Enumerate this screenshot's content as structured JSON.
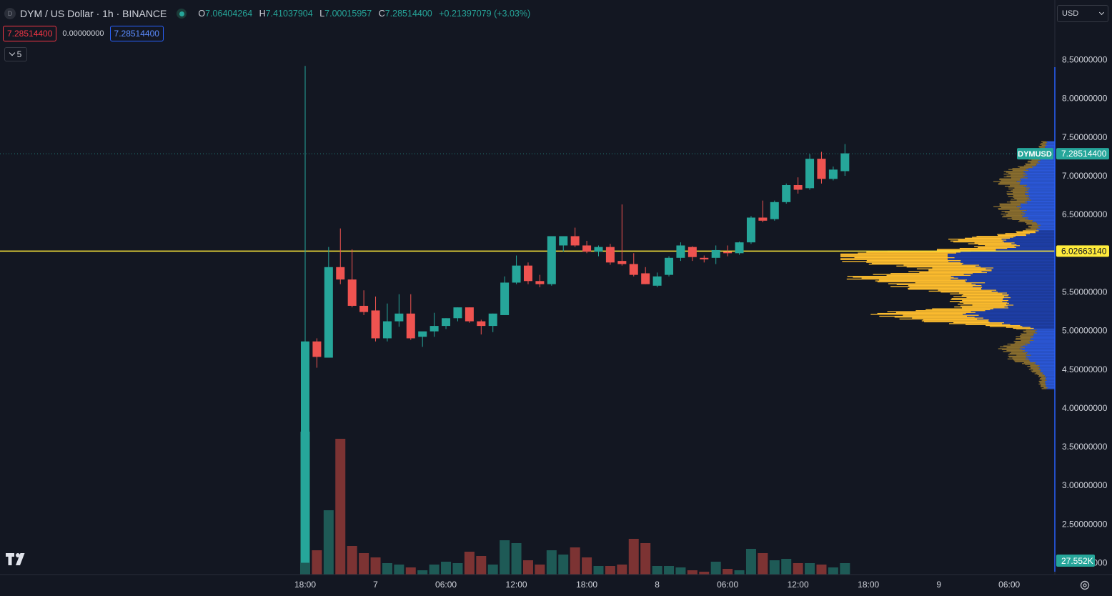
{
  "legend": {
    "badge": "D",
    "title": "DYM / US Dollar · 1h · BINANCE",
    "ohlc": [
      {
        "key": "O",
        "value": "7.06404264"
      },
      {
        "key": "H",
        "value": "7.41037904"
      },
      {
        "key": "L",
        "value": "7.00015957"
      },
      {
        "key": "C",
        "value": "7.28514400"
      }
    ],
    "change": "+0.21397079 (+3.03%)"
  },
  "trade": {
    "sell": "7.28514400",
    "spread": "0.00000000",
    "buy": "7.28514400"
  },
  "indicators_count": "5",
  "currency": "USD",
  "colors": {
    "up": "#26a69a",
    "down": "#ef5350",
    "vol_up": "#1e5a56",
    "vol_down": "#7c3333",
    "hline": "#ffeb3b",
    "profile_blue": "#1e3fa8",
    "profile_yellow": "#ffbe2e",
    "bg": "#131722",
    "axis_text": "#d1d4dc"
  },
  "chart_data": {
    "type": "candlestick",
    "symbol": "DYMUSD",
    "interval": "1h",
    "y_ticks": [
      "8.50000000",
      "8.00000000",
      "7.50000000",
      "7.00000000",
      "6.50000000",
      "5.50000000",
      "5.00000000",
      "4.50000000",
      "4.00000000",
      "3.50000000",
      "3.00000000",
      "2.50000000",
      "2.00000000"
    ],
    "y_tick_values": [
      8.5,
      8.0,
      7.5,
      7.0,
      6.5,
      5.5,
      5.0,
      4.5,
      4.0,
      3.5,
      3.0,
      2.5,
      2.0
    ],
    "x_ticks": [
      {
        "label": "18:00",
        "hour": 0
      },
      {
        "label": "7",
        "hour": 6
      },
      {
        "label": "06:00",
        "hour": 12
      },
      {
        "label": "12:00",
        "hour": 18
      },
      {
        "label": "18:00",
        "hour": 24
      },
      {
        "label": "8",
        "hour": 30
      },
      {
        "label": "06:00",
        "hour": 36
      },
      {
        "label": "12:00",
        "hour": 42
      },
      {
        "label": "18:00",
        "hour": 48
      },
      {
        "label": "9",
        "hour": 54
      },
      {
        "label": "06:00",
        "hour": 60
      }
    ],
    "last_price": {
      "label": "DYMUSD",
      "value": 7.285144,
      "text": "7.28514400"
    },
    "horizontal_line": {
      "value": 6.0266314,
      "text": "6.02663140"
    },
    "volume_label": "27.552K",
    "candles": [
      {
        "o": 2.0,
        "h": 8.42,
        "l": 2.0,
        "c": 4.86,
        "v": 1.0
      },
      {
        "o": 4.86,
        "h": 4.9,
        "l": 4.52,
        "c": 4.66,
        "v": 0.17
      },
      {
        "o": 4.65,
        "h": 6.08,
        "l": 4.65,
        "c": 5.82,
        "v": 0.45
      },
      {
        "o": 5.82,
        "h": 6.32,
        "l": 5.6,
        "c": 5.66,
        "v": 0.95
      },
      {
        "o": 5.66,
        "h": 6.05,
        "l": 5.3,
        "c": 5.32,
        "v": 0.2
      },
      {
        "o": 5.32,
        "h": 5.52,
        "l": 5.2,
        "c": 5.24,
        "v": 0.15
      },
      {
        "o": 5.26,
        "h": 5.44,
        "l": 4.86,
        "c": 4.9,
        "v": 0.12
      },
      {
        "o": 4.9,
        "h": 5.35,
        "l": 4.86,
        "c": 5.12,
        "v": 0.08
      },
      {
        "o": 5.12,
        "h": 5.47,
        "l": 5.05,
        "c": 5.22,
        "v": 0.07
      },
      {
        "o": 5.22,
        "h": 5.47,
        "l": 4.88,
        "c": 4.9,
        "v": 0.05
      },
      {
        "o": 4.92,
        "h": 4.98,
        "l": 4.79,
        "c": 4.99,
        "v": 0.03
      },
      {
        "o": 4.99,
        "h": 5.23,
        "l": 4.92,
        "c": 5.06,
        "v": 0.07
      },
      {
        "o": 5.06,
        "h": 5.16,
        "l": 5.02,
        "c": 5.16,
        "v": 0.09
      },
      {
        "o": 5.16,
        "h": 5.3,
        "l": 5.12,
        "c": 5.3,
        "v": 0.08
      },
      {
        "o": 5.3,
        "h": 5.3,
        "l": 5.1,
        "c": 5.12,
        "v": 0.16
      },
      {
        "o": 5.12,
        "h": 5.14,
        "l": 4.95,
        "c": 5.06,
        "v": 0.13
      },
      {
        "o": 5.06,
        "h": 5.22,
        "l": 4.98,
        "c": 5.22,
        "v": 0.07
      },
      {
        "o": 5.2,
        "h": 5.7,
        "l": 5.2,
        "c": 5.62,
        "v": 0.24
      },
      {
        "o": 5.62,
        "h": 5.97,
        "l": 5.6,
        "c": 5.84,
        "v": 0.22
      },
      {
        "o": 5.84,
        "h": 5.88,
        "l": 5.6,
        "c": 5.64,
        "v": 0.1
      },
      {
        "o": 5.64,
        "h": 5.72,
        "l": 5.56,
        "c": 5.6,
        "v": 0.07
      },
      {
        "o": 5.6,
        "h": 6.22,
        "l": 5.58,
        "c": 6.22,
        "v": 0.17
      },
      {
        "o": 6.1,
        "h": 6.22,
        "l": 6.02,
        "c": 6.22,
        "v": 0.14
      },
      {
        "o": 6.22,
        "h": 6.33,
        "l": 6.08,
        "c": 6.1,
        "v": 0.19
      },
      {
        "o": 6.1,
        "h": 6.16,
        "l": 6.0,
        "c": 6.02,
        "v": 0.12
      },
      {
        "o": 6.02,
        "h": 6.1,
        "l": 5.96,
        "c": 6.08,
        "v": 0.06
      },
      {
        "o": 6.08,
        "h": 6.12,
        "l": 5.85,
        "c": 5.88,
        "v": 0.06
      },
      {
        "o": 5.9,
        "h": 6.63,
        "l": 5.84,
        "c": 5.86,
        "v": 0.07
      },
      {
        "o": 5.86,
        "h": 6.0,
        "l": 5.7,
        "c": 5.72,
        "v": 0.25
      },
      {
        "o": 5.74,
        "h": 5.82,
        "l": 5.6,
        "c": 5.6,
        "v": 0.22
      },
      {
        "o": 5.58,
        "h": 5.75,
        "l": 5.56,
        "c": 5.7,
        "v": 0.06
      },
      {
        "o": 5.72,
        "h": 5.96,
        "l": 5.7,
        "c": 5.94,
        "v": 0.06
      },
      {
        "o": 5.94,
        "h": 6.14,
        "l": 5.9,
        "c": 6.1,
        "v": 0.05
      },
      {
        "o": 6.08,
        "h": 6.09,
        "l": 5.9,
        "c": 5.95,
        "v": 0.03
      },
      {
        "o": 5.94,
        "h": 5.97,
        "l": 5.88,
        "c": 5.92,
        "v": 0.02
      },
      {
        "o": 5.94,
        "h": 6.1,
        "l": 5.86,
        "c": 6.04,
        "v": 0.09
      },
      {
        "o": 6.02,
        "h": 6.1,
        "l": 5.96,
        "c": 6.0,
        "v": 0.04
      },
      {
        "o": 6.0,
        "h": 6.15,
        "l": 5.98,
        "c": 6.14,
        "v": 0.03
      },
      {
        "o": 6.14,
        "h": 6.48,
        "l": 6.12,
        "c": 6.46,
        "v": 0.18
      },
      {
        "o": 6.46,
        "h": 6.68,
        "l": 6.4,
        "c": 6.42,
        "v": 0.15
      },
      {
        "o": 6.44,
        "h": 6.68,
        "l": 6.42,
        "c": 6.66,
        "v": 0.1
      },
      {
        "o": 6.66,
        "h": 6.9,
        "l": 6.64,
        "c": 6.88,
        "v": 0.11
      },
      {
        "o": 6.88,
        "h": 6.98,
        "l": 6.77,
        "c": 6.82,
        "v": 0.08
      },
      {
        "o": 6.84,
        "h": 7.28,
        "l": 6.82,
        "c": 7.22,
        "v": 0.08
      },
      {
        "o": 7.22,
        "h": 7.31,
        "l": 6.9,
        "c": 6.96,
        "v": 0.07
      },
      {
        "o": 6.96,
        "h": 7.12,
        "l": 6.94,
        "c": 7.08,
        "v": 0.05
      },
      {
        "o": 7.06,
        "h": 7.41,
        "l": 7.0,
        "c": 7.29,
        "v": 0.08
      }
    ]
  }
}
